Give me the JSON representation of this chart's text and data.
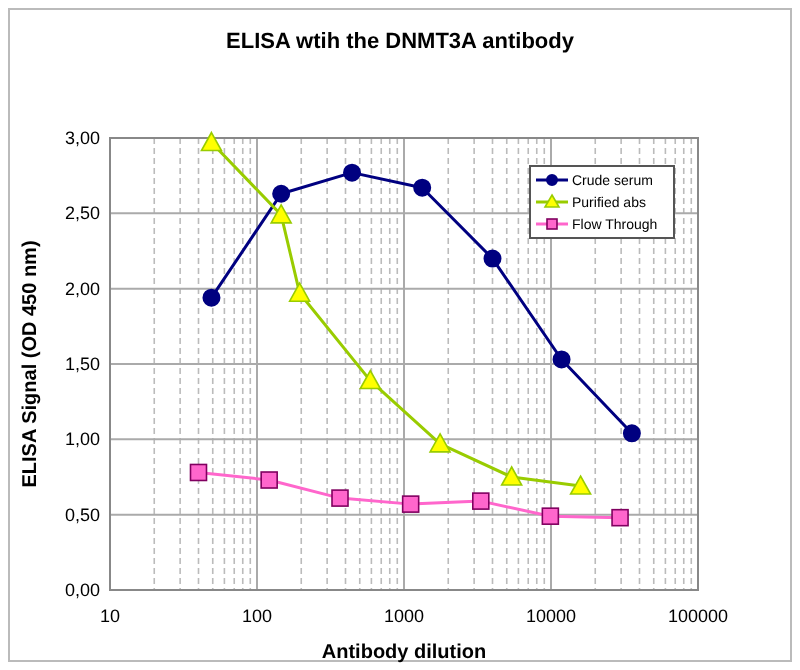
{
  "chart_data": {
    "type": "line",
    "title": "ELISA wtih the DNMT3A antibody",
    "xlabel": "Antibody dilution",
    "ylabel": "ELISA Signal (OD 450 nm)",
    "log": "x",
    "xlim": [
      10,
      100000
    ],
    "xticks": [
      10,
      100,
      1000,
      10000,
      100000
    ],
    "ylim": [
      0,
      3
    ],
    "yticks": [
      {
        "value": 0,
        "label": "0,00"
      },
      {
        "value": 0.5,
        "label": "0,50"
      },
      {
        "value": 1,
        "label": "1,00"
      },
      {
        "value": 1.5,
        "label": "1,50"
      },
      {
        "value": 2,
        "label": "2,00"
      },
      {
        "value": 2.5,
        "label": "2,50"
      },
      {
        "value": 3,
        "label": "3,00"
      }
    ],
    "grid": true,
    "legend": "top right",
    "line_style": "solid",
    "series": [
      {
        "name": "Crude serum",
        "color": "#000080",
        "marker": "circle",
        "x": [
          49,
          146,
          443,
          1330,
          4000,
          11800,
          35500
        ],
        "values": [
          1.94,
          2.63,
          2.77,
          2.67,
          2.2,
          1.53,
          1.04
        ]
      },
      {
        "name": "Purified abs",
        "color": "#99cc00",
        "marker": "triangle",
        "x": [
          49,
          146,
          195,
          590,
          1760,
          5400,
          15900
        ],
        "values": [
          2.97,
          2.49,
          1.97,
          1.39,
          0.97,
          0.75,
          0.69
        ]
      },
      {
        "name": "Flow Through",
        "color": "#ff66cc",
        "marker": "square",
        "x": [
          40,
          121,
          367,
          1110,
          3330,
          9900,
          29500
        ],
        "values": [
          0.78,
          0.73,
          0.61,
          0.57,
          0.59,
          0.49,
          0.48
        ]
      }
    ]
  }
}
